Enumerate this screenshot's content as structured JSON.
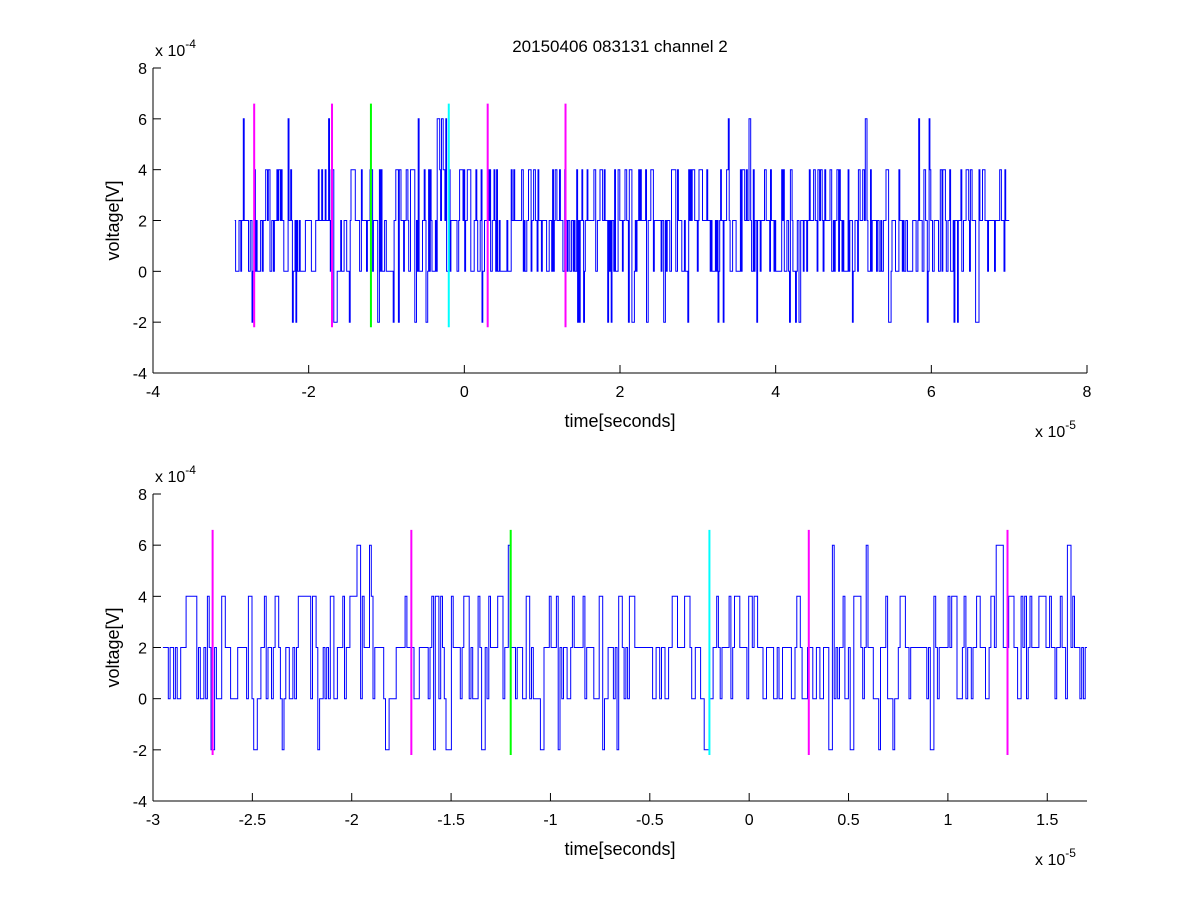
{
  "figure_title": "20150406 083131 channel 2",
  "colors": {
    "signal": "#0000ff",
    "magenta": "#ff00ff",
    "green": "#00ff00",
    "cyan": "#00ffff",
    "axis": "#000000",
    "background": "#ffffff"
  },
  "chart_data": [
    {
      "type": "line",
      "title": "20150406 083131 channel 2",
      "xlabel": "time[seconds]",
      "ylabel": "voltage[V]",
      "x_multiplier_label": "x 10^-5",
      "y_multiplier_label": "x 10^-4",
      "xlim": [
        -4,
        8
      ],
      "ylim": [
        -4,
        8
      ],
      "xticks": [
        -4,
        -2,
        0,
        2,
        4,
        6,
        8
      ],
      "yticks": [
        -4,
        -2,
        0,
        2,
        4,
        6,
        8
      ],
      "grid": false,
      "signal": {
        "name": "",
        "x_start": -2.95,
        "x_end": 7.0,
        "levels": [
          -2,
          0,
          2,
          4,
          6
        ]
      },
      "markers": [
        {
          "x": -2.7,
          "y_range": [
            -2.2,
            6.6
          ],
          "color": "magenta"
        },
        {
          "x": -1.7,
          "y_range": [
            -2.2,
            6.6
          ],
          "color": "magenta"
        },
        {
          "x": -1.2,
          "y_range": [
            -2.2,
            6.6
          ],
          "color": "green"
        },
        {
          "x": -0.2,
          "y_range": [
            -2.2,
            6.6
          ],
          "color": "cyan"
        },
        {
          "x": 0.3,
          "y_range": [
            -2.2,
            6.6
          ],
          "color": "magenta"
        },
        {
          "x": 1.3,
          "y_range": [
            -2.2,
            6.6
          ],
          "color": "magenta"
        }
      ]
    },
    {
      "type": "line",
      "title": "",
      "xlabel": "time[seconds]",
      "ylabel": "voltage[V]",
      "x_multiplier_label": "x 10^-5",
      "y_multiplier_label": "x 10^-4",
      "xlim": [
        -3.0,
        1.7
      ],
      "ylim": [
        -4,
        8
      ],
      "xticks": [
        -3,
        -2.5,
        -2,
        -1.5,
        -1,
        -0.5,
        0,
        0.5,
        1,
        1.5
      ],
      "yticks": [
        -4,
        -2,
        0,
        2,
        4,
        6,
        8
      ],
      "grid": false,
      "signal": {
        "name": "",
        "x_start": -2.95,
        "x_end": 1.7,
        "levels": [
          -2,
          0,
          2,
          4,
          6
        ]
      },
      "markers": [
        {
          "x": -2.7,
          "y_range": [
            -2.2,
            6.6
          ],
          "color": "magenta"
        },
        {
          "x": -1.7,
          "y_range": [
            -2.2,
            6.6
          ],
          "color": "magenta"
        },
        {
          "x": -1.2,
          "y_range": [
            -2.2,
            6.6
          ],
          "color": "green"
        },
        {
          "x": -0.2,
          "y_range": [
            -2.2,
            6.6
          ],
          "color": "cyan"
        },
        {
          "x": 0.3,
          "y_range": [
            -2.2,
            6.6
          ],
          "color": "magenta"
        },
        {
          "x": 1.3,
          "y_range": [
            -2.2,
            6.6
          ],
          "color": "magenta"
        }
      ]
    }
  ]
}
